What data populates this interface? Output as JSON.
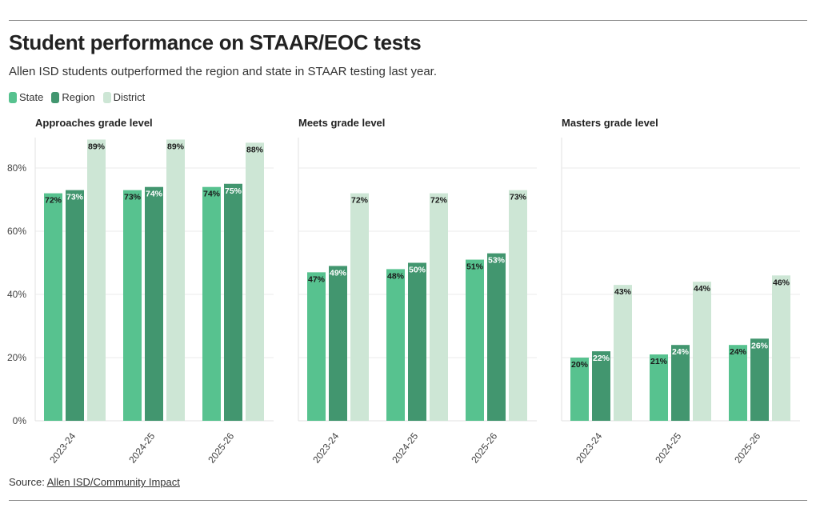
{
  "header": {
    "title": "Student performance on STAAR/EOC tests",
    "subtitle": "Allen ISD students outperformed the region and state in STAAR testing last year."
  },
  "legend": [
    {
      "label": "State",
      "color": "#57c28f"
    },
    {
      "label": "Region",
      "color": "#42966f"
    },
    {
      "label": "District",
      "color": "#cde6d5"
    }
  ],
  "source": {
    "prefix": "Source: ",
    "link_text": "Allen ISD/Community Impact"
  },
  "chart_data": {
    "type": "bar",
    "layout": "small-multiples",
    "categories": [
      "2023-24",
      "2024-25",
      "2025-26"
    ],
    "y_ticks": [
      "0%",
      "20%",
      "40%",
      "60%",
      "80%"
    ],
    "ylim": [
      0,
      90
    ],
    "grid": true,
    "legend_position": "top-left",
    "panels": [
      {
        "title": "Approaches grade level",
        "series": [
          {
            "name": "State",
            "values": [
              72,
              73,
              74
            ]
          },
          {
            "name": "Region",
            "values": [
              73,
              74,
              75
            ]
          },
          {
            "name": "District",
            "values": [
              89,
              89,
              88
            ]
          }
        ]
      },
      {
        "title": "Meets grade level",
        "series": [
          {
            "name": "State",
            "values": [
              47,
              48,
              51
            ]
          },
          {
            "name": "Region",
            "values": [
              49,
              50,
              53
            ]
          },
          {
            "name": "District",
            "values": [
              72,
              72,
              73
            ]
          }
        ]
      },
      {
        "title": "Masters grade level",
        "series": [
          {
            "name": "State",
            "values": [
              20,
              21,
              24
            ]
          },
          {
            "name": "Region",
            "values": [
              22,
              24,
              26
            ]
          },
          {
            "name": "District",
            "values": [
              43,
              44,
              46
            ]
          }
        ]
      }
    ],
    "series_colors": [
      "#57c28f",
      "#42966f",
      "#cde6d5"
    ],
    "label_colors": [
      "#1a1a1a",
      "#ffffff",
      "#1a1a1a"
    ]
  }
}
